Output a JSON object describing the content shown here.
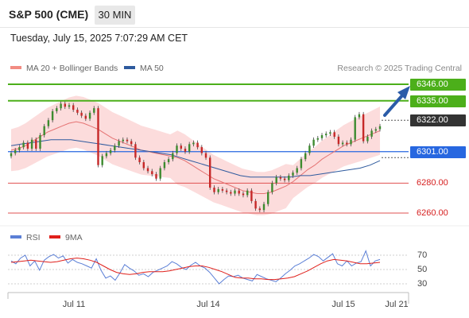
{
  "header": {
    "title": "S&P 500 (CME)",
    "timeframe": "30 MIN"
  },
  "datetime": "Tuesday, July 15, 2025 7:07:29 AM CET",
  "legend": {
    "bollinger": {
      "label": "MA 20 + Bollinger Bands",
      "color": "#f28b82"
    },
    "ma50": {
      "label": "MA 50",
      "color": "#2e5a9e"
    }
  },
  "copyright": "Research © 2025 Trading Central",
  "rsi_legend": {
    "rsi": {
      "label": "RSI",
      "color": "#5b7fd6"
    },
    "ma9": {
      "label": "9MA",
      "color": "#e0201b"
    }
  },
  "colors": {
    "up_candle": "#3d8b2f",
    "down_candle": "#c62828",
    "band_fill": "#fcd6d6",
    "resistance": "#4caf1a",
    "support": "#e05050",
    "pivot": "#2767e0",
    "arrow": "#2b5ca8"
  },
  "price_levels": [
    {
      "label": "6346.00",
      "value": 6346,
      "style": "green"
    },
    {
      "label": "6335.00",
      "value": 6335,
      "style": "green"
    },
    {
      "label": "6322.00",
      "value": 6322,
      "style": "dark"
    },
    {
      "label": "6301.00",
      "value": 6301,
      "style": "blue"
    },
    {
      "label": "6280.00",
      "value": 6280,
      "style": "plain"
    },
    {
      "label": "6260.00",
      "value": 6260,
      "style": "plain"
    }
  ],
  "rsi_ticks": [
    "70",
    "50",
    "30"
  ],
  "x_ticks": [
    "Jul 11",
    "Jul 14",
    "Jul 15",
    "Jul 21"
  ],
  "chart_data": {
    "type": "candlestick",
    "x_ticks": [
      "Jul 11",
      "Jul 14",
      "Jul 15",
      "Jul 21"
    ],
    "ylim": [
      6255,
      6350
    ],
    "close_series": [
      6300,
      6302,
      6304,
      6307,
      6303,
      6309,
      6303,
      6312,
      6318,
      6322,
      6328,
      6330,
      6333,
      6331,
      6332,
      6329,
      6327,
      6325,
      6323,
      6327,
      6330,
      6292,
      6298,
      6300,
      6302,
      6305,
      6308,
      6309,
      6308,
      6306,
      6297,
      6294,
      6290,
      6288,
      6286,
      6283,
      6290,
      6294,
      6296,
      6300,
      6305,
      6303,
      6301,
      6306,
      6307,
      6304,
      6300,
      6297,
      6277,
      6274,
      6276,
      6275,
      6274,
      6273,
      6275,
      6273,
      6272,
      6275,
      6268,
      6263,
      6262,
      6266,
      6274,
      6280,
      6284,
      6283,
      6282,
      6285,
      6287,
      6290,
      6296,
      6300,
      6305,
      6309,
      6310,
      6312,
      6313,
      6314,
      6311,
      6306,
      6307,
      6306,
      6309,
      6324,
      6326,
      6308,
      6311,
      6315,
      6316,
      6318
    ],
    "ma20_series": [
      6302,
      6303,
      6305,
      6308,
      6311,
      6314,
      6316,
      6318,
      6320,
      6321,
      6320,
      6318,
      6316,
      6313,
      6310,
      6308,
      6306,
      6304,
      6302,
      6301,
      6300,
      6299,
      6298,
      6297,
      6295,
      6292,
      6289,
      6286,
      6283,
      6281,
      6279,
      6277,
      6275,
      6274,
      6273,
      6273,
      6274,
      6276,
      6278,
      6281,
      6285,
      6289,
      6292,
      6296,
      6299,
      6302,
      6305,
      6307,
      6309,
      6311,
      6313,
      6315
    ],
    "ma50_series": [
      6305,
      6306,
      6307,
      6308,
      6309,
      6309,
      6309,
      6308,
      6307,
      6306,
      6305,
      6304,
      6303,
      6302,
      6301,
      6300,
      6299,
      6297,
      6295,
      6293,
      6291,
      6289,
      6287,
      6285,
      6284,
      6284,
      6284,
      6284,
      6284,
      6285,
      6285,
      6286,
      6287,
      6288,
      6289,
      6290,
      6292,
      6295
    ],
    "rsi_series": [
      62,
      58,
      66,
      70,
      55,
      62,
      49,
      63,
      68,
      71,
      66,
      69,
      59,
      64,
      60,
      58,
      55,
      52,
      65,
      49,
      38,
      41,
      35,
      45,
      57,
      52,
      48,
      42,
      44,
      40,
      46,
      49,
      52,
      55,
      61,
      58,
      53,
      50,
      56,
      60,
      55,
      52,
      46,
      38,
      30,
      36,
      41,
      40,
      42,
      38,
      36,
      34,
      43,
      40,
      37,
      35,
      33,
      38,
      44,
      49,
      55,
      58,
      62,
      66,
      71,
      68,
      62,
      67,
      72,
      58,
      55,
      62,
      55,
      59,
      61,
      76,
      55,
      62,
      64
    ],
    "rsi_ma9_series": [
      60,
      61,
      62,
      63,
      62,
      61,
      60,
      61,
      63,
      65,
      66,
      65,
      63,
      60,
      55,
      50,
      46,
      44,
      43,
      44,
      46,
      47,
      47,
      47,
      48,
      50,
      52,
      54,
      55,
      55,
      53,
      50,
      47,
      43,
      39,
      38,
      38,
      37,
      37,
      36,
      36,
      37,
      38,
      40,
      44,
      48,
      53,
      58,
      62,
      64,
      63,
      62,
      60,
      58,
      58,
      59,
      60
    ],
    "rsi_ylim": [
      20,
      80
    ]
  }
}
